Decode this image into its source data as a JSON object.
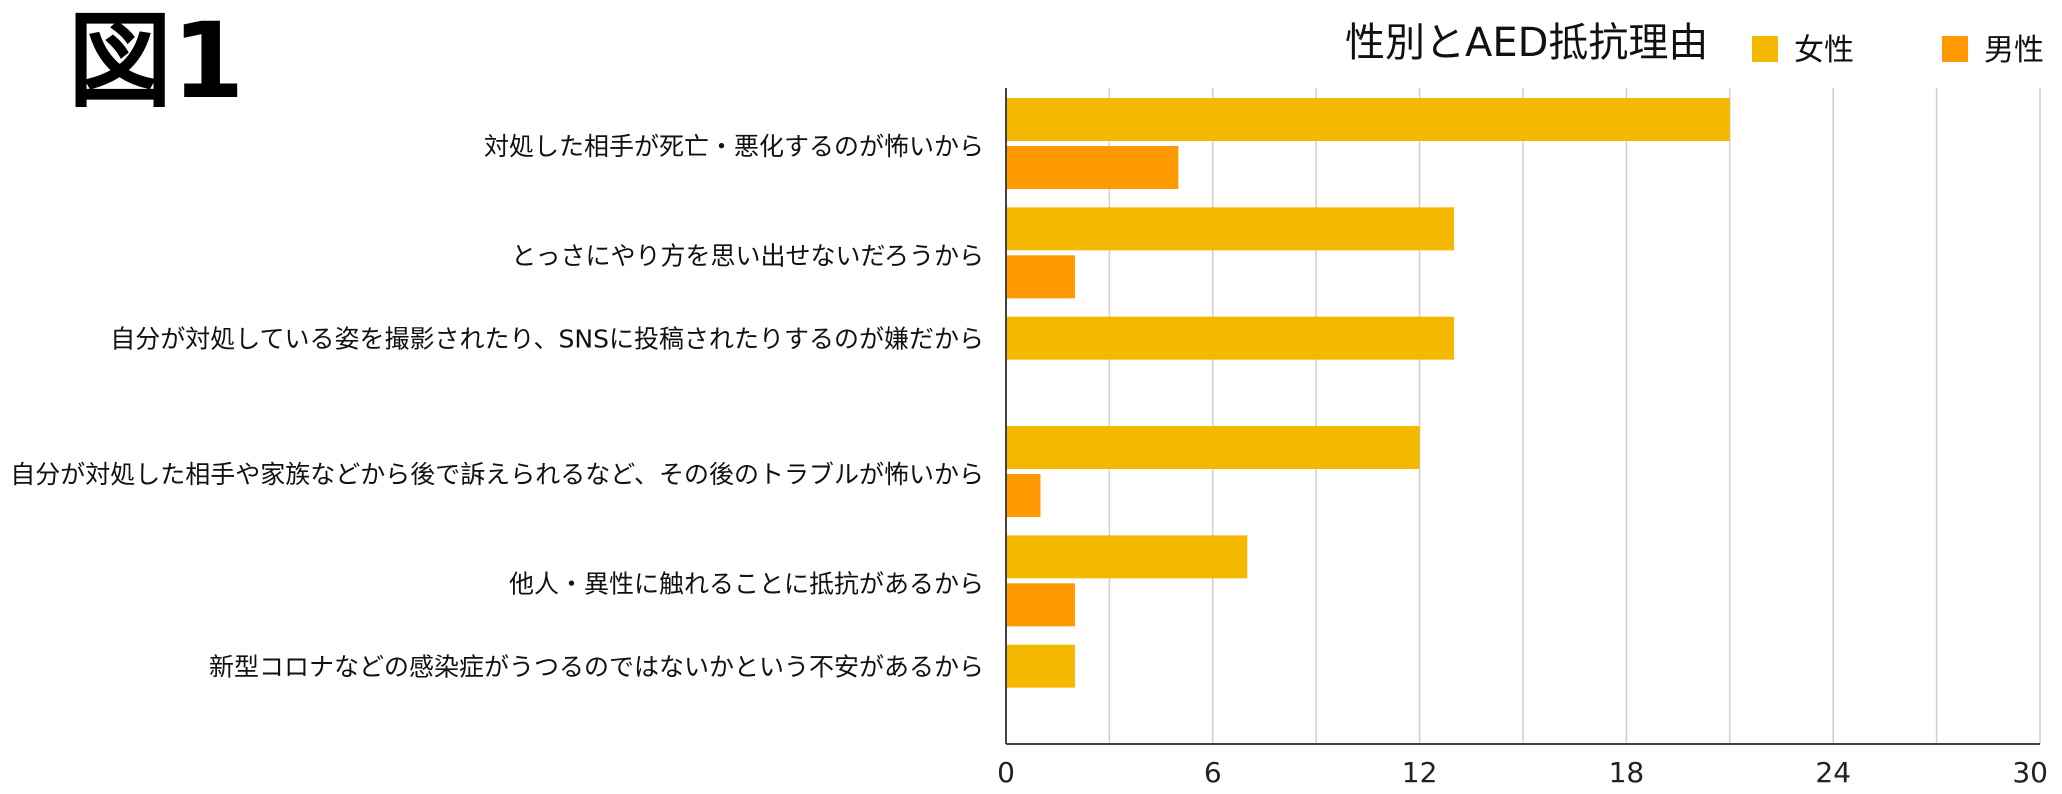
{
  "figure_label": "図1",
  "chart_data": {
    "type": "bar",
    "orientation": "horizontal",
    "title": "性別とAED抵抗理由",
    "categories": [
      "対処した相手が死亡・悪化するのが怖いから",
      "とっさにやり方を思い出せないだろうから",
      "自分が対処している姿を撮影されたり、SNSに投稿されたりするのが嫌だから",
      "自分が対処した相手や家族などから後で訴えられるなど、その後のトラブルが怖いから",
      "他人・異性に触れることに抵抗があるから",
      "新型コロナなどの感染症がうつるのではないかという不安があるから"
    ],
    "series": [
      {
        "name": "女性",
        "color": "#F5B800",
        "values": [
          21,
          13,
          13,
          12,
          7,
          2
        ]
      },
      {
        "name": "男性",
        "color": "#FF9900",
        "values": [
          5,
          2,
          0,
          1,
          2,
          0
        ]
      }
    ],
    "xlim": [
      0,
      30
    ],
    "x_ticks": [
      0,
      6,
      12,
      18,
      24,
      30
    ],
    "grid": true,
    "legend_position": "top-right"
  }
}
